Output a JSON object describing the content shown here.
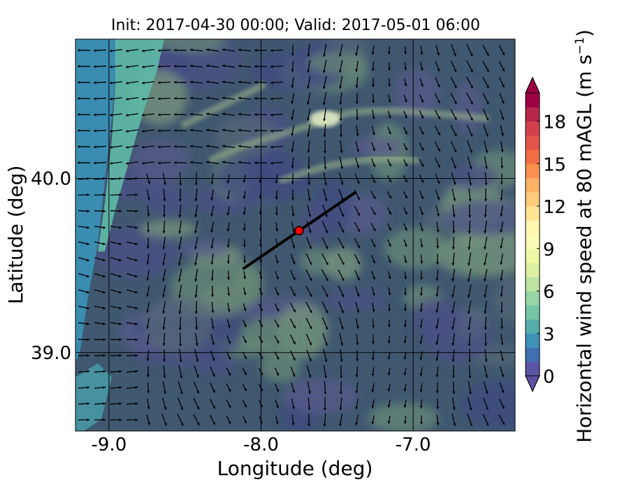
{
  "title": "Init: 2017-04-30 00:00; Valid: 2017-05-01 06:00",
  "chart_data": {
    "type": "map",
    "title": "Init: 2017-04-30 00:00; Valid: 2017-05-01 06:00",
    "xlabel": "Longitude (deg)",
    "ylabel": "Latitude (deg)",
    "xlim": [
      -9.22,
      -6.33
    ],
    "ylim": [
      38.55,
      40.8
    ],
    "xticks": [
      {
        "value": -9.0,
        "label": "-9.0"
      },
      {
        "value": -8.0,
        "label": "-8.0"
      },
      {
        "value": -7.0,
        "label": "-7.0"
      }
    ],
    "yticks": [
      {
        "value": 40.0,
        "label": "40.0"
      },
      {
        "value": 39.0,
        "label": "39.0"
      }
    ],
    "grid": true,
    "field": "Horizontal wind speed at 80 mAGL",
    "overlay": "wind vectors",
    "cross_section_line": {
      "start": {
        "lon": -8.12,
        "lat": 39.48
      },
      "end": {
        "lon": -7.38,
        "lat": 39.92
      },
      "color": "#000000"
    },
    "marker": {
      "lon": -7.75,
      "lat": 39.7,
      "color": "#ff0000"
    },
    "colorbar": {
      "label_main": "Horizontal wind speed at 80 mAGL (m s",
      "label_sup": "−1",
      "label_end": ")",
      "min": 0,
      "max": 20,
      "step": 1,
      "extend": "both",
      "ticks": [
        {
          "value": 0,
          "label": "0"
        },
        {
          "value": 3,
          "label": "3"
        },
        {
          "value": 6,
          "label": "6"
        },
        {
          "value": 9,
          "label": "9"
        },
        {
          "value": 12,
          "label": "12"
        },
        {
          "value": 15,
          "label": "15"
        },
        {
          "value": 18,
          "label": "18"
        }
      ],
      "colors": [
        "#5954a4",
        "#3f6fb2",
        "#3d92b8",
        "#56ada9",
        "#75c6a6",
        "#98d4a4",
        "#bde4a1",
        "#dbf0a0",
        "#eef8a4",
        "#f9fcb5",
        "#fff6b0",
        "#fee594",
        "#fdcb79",
        "#fdb163",
        "#fa9050",
        "#f36e45",
        "#e3554a",
        "#d1404c",
        "#b5264a",
        "#9e0142"
      ],
      "under_color": "#5e4fa2",
      "over_color": "#9e0142"
    }
  }
}
